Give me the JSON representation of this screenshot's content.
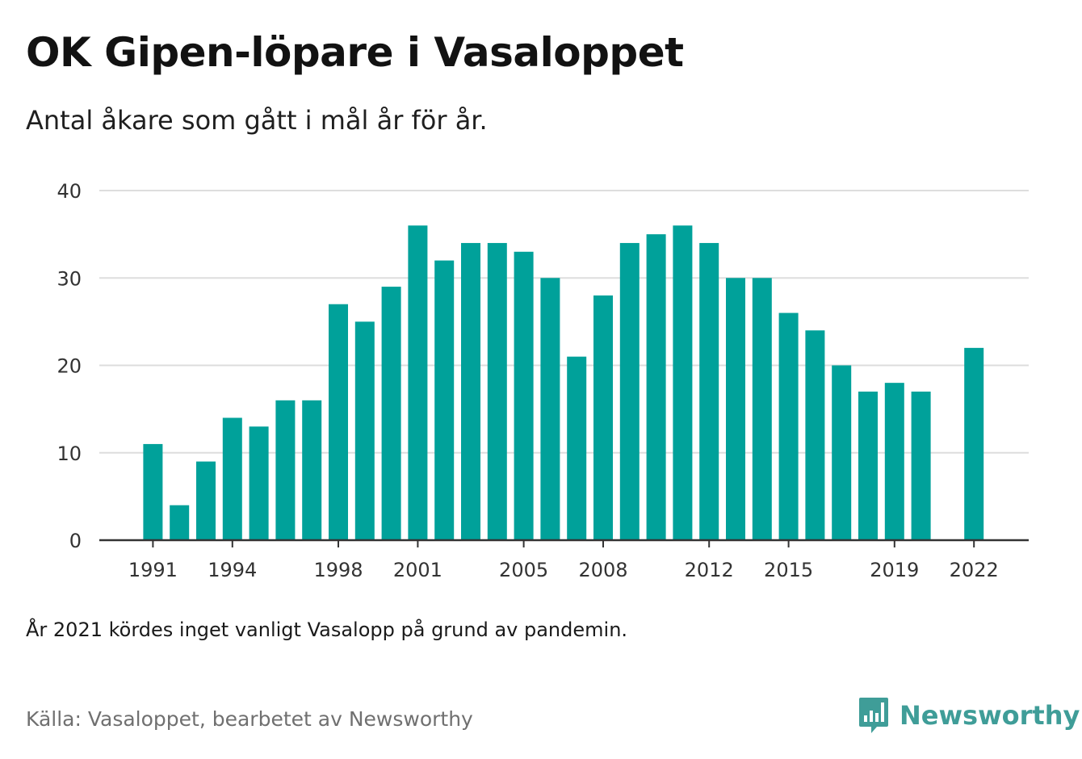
{
  "header": {
    "title": "OK Gipen-löpare i Vasaloppet",
    "subtitle": "Antal åkare som gått i mål år för år."
  },
  "footer": {
    "note": "År 2021 kördes inget vanligt Vasalopp på grund av pandemin.",
    "source": "Källa: Vasaloppet, bearbetet av Newsworthy",
    "logo_text": "Newsworthy"
  },
  "colors": {
    "bar": "#00a19a",
    "logo": "#3f9d98",
    "gridline": "#dddddd",
    "axis": "#333333"
  },
  "icons": {
    "logo": "newsworthy-logo-icon"
  },
  "chart_data": {
    "type": "bar",
    "title": "OK Gipen-löpare i Vasaloppet",
    "subtitle": "Antal åkare som gått i mål år för år.",
    "xlabel": "",
    "ylabel": "",
    "ylim": [
      0,
      40
    ],
    "yticks": [
      0,
      10,
      20,
      30,
      40
    ],
    "xtick_labels": [
      "1991",
      "1994",
      "1998",
      "2001",
      "2005",
      "2008",
      "2012",
      "2015",
      "2019",
      "2022"
    ],
    "grid": true,
    "legend": "none",
    "categories": [
      1991,
      1992,
      1993,
      1994,
      1995,
      1996,
      1997,
      1998,
      1999,
      2000,
      2001,
      2002,
      2003,
      2004,
      2005,
      2006,
      2007,
      2008,
      2009,
      2010,
      2011,
      2012,
      2013,
      2014,
      2015,
      2016,
      2017,
      2018,
      2019,
      2020,
      2021,
      2022
    ],
    "values": [
      11,
      4,
      9,
      14,
      13,
      16,
      16,
      27,
      25,
      29,
      36,
      32,
      34,
      34,
      33,
      30,
      21,
      28,
      34,
      35,
      36,
      34,
      30,
      30,
      26,
      24,
      20,
      17,
      18,
      17,
      null,
      22
    ]
  }
}
